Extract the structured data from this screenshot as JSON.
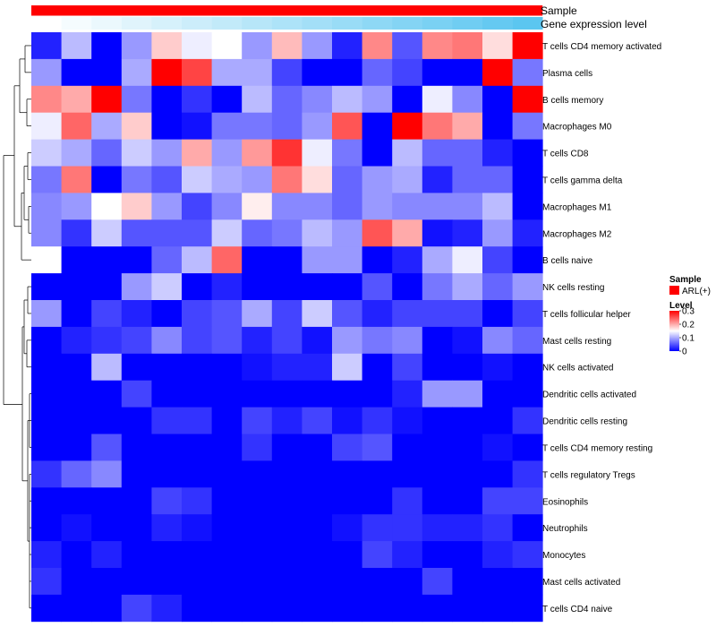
{
  "chart_data": {
    "type": "heatmap",
    "title": "",
    "annotation_tracks": [
      "Sample",
      "Gene expression level"
    ],
    "sample_track_color": "#ff0000",
    "gene_level_gradient": [
      "#ffffff",
      "#5bc6f0"
    ],
    "rows": [
      "T cells CD4 memory activated",
      "Plasma cells",
      "B cells memory",
      "Macrophages M0",
      "T cells CD8",
      "T cells gamma delta",
      "Macrophages M1",
      "Macrophages M2",
      "B cells naive",
      "NK cells resting",
      "T cells follicular helper",
      "Mast cells resting",
      "NK cells activated",
      "Dendritic cells activated",
      "Dendritic cells resting",
      "T cells CD4 memory resting",
      "T cells regulatory  Tregs",
      "Eosinophils",
      "Neutrophils",
      "Monocytes",
      "Mast cells activated",
      "T cells CD4 naive"
    ],
    "values": [
      [
        0.02,
        0.11,
        0.0,
        0.09,
        0.18,
        0.14,
        0.15,
        0.09,
        0.19,
        0.09,
        0.02,
        0.22,
        0.05,
        0.22,
        0.23,
        0.17,
        0.3
      ],
      [
        0.09,
        0.0,
        0.0,
        0.1,
        0.3,
        0.26,
        0.1,
        0.1,
        0.04,
        0.0,
        0.0,
        0.06,
        0.04,
        0.0,
        0.0,
        0.3,
        0.07
      ],
      [
        0.22,
        0.2,
        0.3,
        0.07,
        0.0,
        0.03,
        0.0,
        0.11,
        0.06,
        0.08,
        0.11,
        0.09,
        0.0,
        0.14,
        0.08,
        0.0,
        0.3
      ],
      [
        0.14,
        0.24,
        0.1,
        0.18,
        0.0,
        0.01,
        0.07,
        0.07,
        0.06,
        0.09,
        0.25,
        0.0,
        0.3,
        0.23,
        0.2,
        0.0,
        0.07
      ],
      [
        0.12,
        0.1,
        0.06,
        0.12,
        0.09,
        0.2,
        0.09,
        0.21,
        0.27,
        0.14,
        0.07,
        0.0,
        0.11,
        0.06,
        0.06,
        0.02,
        0.0
      ],
      [
        0.07,
        0.23,
        0.0,
        0.07,
        0.05,
        0.12,
        0.1,
        0.09,
        0.23,
        0.17,
        0.06,
        0.09,
        0.1,
        0.02,
        0.06,
        0.06,
        0.0
      ],
      [
        0.08,
        0.09,
        0.15,
        0.18,
        0.09,
        0.04,
        0.08,
        0.16,
        0.08,
        0.08,
        0.06,
        0.09,
        0.08,
        0.08,
        0.08,
        0.11,
        0.0
      ],
      [
        0.08,
        0.03,
        0.12,
        0.05,
        0.05,
        0.05,
        0.12,
        0.06,
        0.07,
        0.11,
        0.09,
        0.25,
        0.2,
        0.01,
        0.02,
        0.09,
        0.02
      ],
      [
        0.15,
        0.0,
        0.0,
        0.0,
        0.06,
        0.11,
        0.24,
        0.0,
        0.0,
        0.09,
        0.09,
        0.0,
        0.02,
        0.1,
        0.14,
        0.04,
        0.0
      ],
      [
        0.0,
        0.0,
        0.0,
        0.09,
        0.12,
        0.0,
        0.02,
        0.0,
        0.0,
        0.0,
        0.0,
        0.05,
        0.0,
        0.07,
        0.1,
        0.06,
        0.09
      ],
      [
        0.09,
        0.0,
        0.04,
        0.02,
        0.0,
        0.04,
        0.05,
        0.1,
        0.04,
        0.12,
        0.05,
        0.02,
        0.04,
        0.04,
        0.04,
        0.0,
        0.04
      ],
      [
        0.0,
        0.02,
        0.03,
        0.04,
        0.08,
        0.04,
        0.05,
        0.02,
        0.04,
        0.01,
        0.09,
        0.07,
        0.08,
        0.0,
        0.01,
        0.08,
        0.06
      ],
      [
        0.0,
        0.0,
        0.11,
        0.0,
        0.0,
        0.0,
        0.0,
        0.01,
        0.02,
        0.02,
        0.12,
        0.0,
        0.04,
        0.0,
        0.0,
        0.01,
        0.0
      ],
      [
        0.0,
        0.0,
        0.0,
        0.04,
        0.0,
        0.0,
        0.0,
        0.0,
        0.0,
        0.0,
        0.0,
        0.0,
        0.02,
        0.09,
        0.09,
        0.0,
        0.0
      ],
      [
        0.0,
        0.0,
        0.0,
        0.0,
        0.03,
        0.03,
        0.0,
        0.04,
        0.02,
        0.04,
        0.01,
        0.03,
        0.01,
        0.0,
        0.0,
        0.0,
        0.03
      ],
      [
        0.0,
        0.0,
        0.05,
        0.0,
        0.0,
        0.0,
        0.0,
        0.03,
        0.0,
        0.0,
        0.04,
        0.05,
        0.0,
        0.0,
        0.0,
        0.01,
        0.0
      ],
      [
        0.03,
        0.06,
        0.08,
        0.0,
        0.0,
        0.0,
        0.0,
        0.0,
        0.0,
        0.0,
        0.0,
        0.0,
        0.0,
        0.0,
        0.0,
        0.0,
        0.03
      ],
      [
        0.0,
        0.0,
        0.0,
        0.0,
        0.04,
        0.03,
        0.0,
        0.0,
        0.0,
        0.0,
        0.0,
        0.0,
        0.03,
        0.0,
        0.0,
        0.04,
        0.04
      ],
      [
        0.0,
        0.01,
        0.0,
        0.0,
        0.02,
        0.01,
        0.0,
        0.0,
        0.0,
        0.0,
        0.01,
        0.03,
        0.03,
        0.02,
        0.02,
        0.03,
        0.0
      ],
      [
        0.02,
        0.0,
        0.02,
        0.0,
        0.0,
        0.0,
        0.0,
        0.0,
        0.0,
        0.0,
        0.0,
        0.04,
        0.02,
        0.0,
        0.0,
        0.02,
        0.03
      ],
      [
        0.03,
        0.0,
        0.0,
        0.0,
        0.0,
        0.0,
        0.0,
        0.0,
        0.0,
        0.0,
        0.0,
        0.0,
        0.0,
        0.04,
        0.0,
        0.0,
        0.0
      ],
      [
        0.0,
        0.0,
        0.0,
        0.04,
        0.02,
        0.0,
        0.0,
        0.0,
        0.0,
        0.0,
        0.0,
        0.0,
        0.0,
        0.0,
        0.0,
        0.0,
        0.0
      ]
    ],
    "gene_expression_level": [
      0.0,
      0.06,
      0.12,
      0.19,
      0.25,
      0.31,
      0.37,
      0.44,
      0.5,
      0.56,
      0.62,
      0.69,
      0.75,
      0.81,
      0.87,
      0.94,
      1.0
    ],
    "color_scale": {
      "min": 0,
      "mid": 0.15,
      "max": 0.3,
      "low_color": "#0000ff",
      "mid_color": "#ffffff",
      "high_color": "#ff0000"
    },
    "legend": {
      "sample_title": "Sample",
      "sample_entry": "ARL(+)",
      "level_title": "Level",
      "level_ticks": [
        "0.3",
        "0.2",
        "0.1",
        "0"
      ],
      "level_tick_values": [
        0.3,
        0.2,
        0.1,
        0
      ]
    }
  }
}
